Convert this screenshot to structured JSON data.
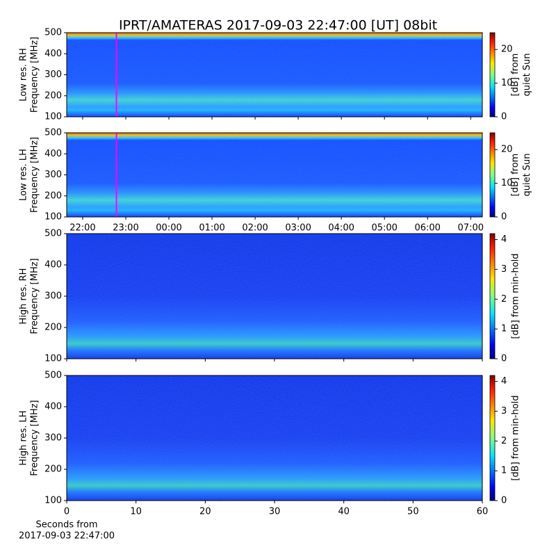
{
  "title": "IPRT/AMATERAS 2017-09-03 22:47:00 [UT]   08bit",
  "chart_data": [
    {
      "type": "spectrogram",
      "ylabel": [
        "Low res. RH",
        "Frequency [MHz]"
      ],
      "xlim": [
        21.63,
        31.27
      ],
      "xticks": [
        22,
        23,
        24,
        25,
        26,
        27,
        28,
        29,
        30,
        31
      ],
      "ylim": [
        100,
        500
      ],
      "yticks": [
        100,
        200,
        300,
        400,
        500
      ],
      "marker_x": 22.783,
      "marker_color": "#ff00ff",
      "colorbar": {
        "label": [
          "[dB] from",
          "quiet Sun"
        ],
        "lim": [
          0,
          25
        ],
        "ticks": [
          0,
          10,
          20
        ]
      }
    },
    {
      "type": "spectrogram",
      "ylabel": [
        "Low res. LH",
        "Frequency [MHz]"
      ],
      "xlim": [
        21.63,
        31.27
      ],
      "xticks": [
        {
          "value": 22,
          "label": "22:00"
        },
        {
          "value": 23,
          "label": "23:00"
        },
        {
          "value": 24,
          "label": "00:00"
        },
        {
          "value": 25,
          "label": "01:00"
        },
        {
          "value": 26,
          "label": "02:00"
        },
        {
          "value": 27,
          "label": "03:00"
        },
        {
          "value": 28,
          "label": "04:00"
        },
        {
          "value": 29,
          "label": "05:00"
        },
        {
          "value": 30,
          "label": "06:00"
        },
        {
          "value": 31,
          "label": "07:00"
        }
      ],
      "ylim": [
        100,
        500
      ],
      "yticks": [
        100,
        200,
        300,
        400,
        500
      ],
      "marker_x": 22.783,
      "marker_color": "#ff00ff",
      "colorbar": {
        "label": [
          "[dB] from",
          "quiet Sun"
        ],
        "lim": [
          0,
          25
        ],
        "ticks": [
          0,
          10,
          20
        ]
      }
    },
    {
      "type": "spectrogram",
      "ylabel": [
        "High res. RH",
        "Frequency [MHz]"
      ],
      "xlim": [
        0,
        60
      ],
      "xticks": [
        0,
        10,
        20,
        30,
        40,
        50,
        60
      ],
      "ylim": [
        100,
        500
      ],
      "yticks": [
        100,
        200,
        300,
        400,
        500
      ],
      "colorbar": {
        "label": [
          "[dB] from min-hold"
        ],
        "lim": [
          0,
          4.2
        ],
        "ticks": [
          0,
          1,
          2,
          3,
          4
        ]
      }
    },
    {
      "type": "spectrogram",
      "ylabel": [
        "High res. LH",
        "Frequency [MHz]"
      ],
      "xlabel": [
        "Seconds from",
        "2017-09-03 22:47:00"
      ],
      "xlim": [
        0,
        60
      ],
      "xticks": [
        0,
        10,
        20,
        30,
        40,
        50,
        60
      ],
      "xticklabels": true,
      "ylim": [
        100,
        500
      ],
      "yticks": [
        100,
        200,
        300,
        400,
        500
      ],
      "colorbar": {
        "label": [
          "[dB] from min-hold"
        ],
        "lim": [
          0,
          4.2
        ],
        "ticks": [
          0,
          1,
          2,
          3,
          4
        ]
      }
    }
  ]
}
